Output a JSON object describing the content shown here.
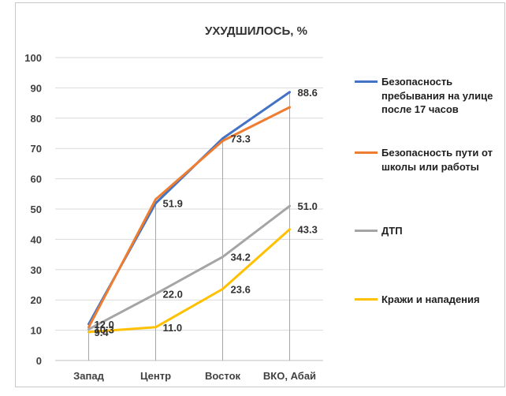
{
  "chart_data": {
    "type": "line",
    "title": "УХУДШИЛОСЬ, %",
    "categories": [
      "Запад",
      "Центр",
      "Восток",
      "ВКО, Абай"
    ],
    "ylim": [
      0,
      100
    ],
    "yticks": [
      0,
      10,
      20,
      30,
      40,
      50,
      60,
      70,
      80,
      90,
      100
    ],
    "grid": true,
    "legend_position": "right",
    "series": [
      {
        "name": "Безопасность пребывания на улице после 17 часов",
        "color": "#4472c4",
        "values": [
          12.0,
          51.9,
          73.3,
          88.6
        ]
      },
      {
        "name": "Безопасность пути от школы или работы",
        "color": "#ed7d31",
        "values": [
          11.0,
          53.2,
          72.5,
          83.6
        ]
      },
      {
        "name": "ДТП",
        "color": "#a5a5a5",
        "values": [
          10.3,
          22.0,
          34.2,
          51.0
        ]
      },
      {
        "name": "Кражи и нападения",
        "color": "#ffc000",
        "values": [
          9.4,
          11.0,
          23.6,
          43.3
        ]
      }
    ],
    "data_labels": [
      {
        "text": "12.0",
        "category": 0,
        "value": 12.0
      },
      {
        "text": "10.3",
        "category": 0,
        "value": 10.3
      },
      {
        "text": "9.4",
        "category": 0,
        "value": 9.4
      },
      {
        "text": "51.9",
        "category": 1,
        "value": 51.9
      },
      {
        "text": "22.0",
        "category": 1,
        "value": 22.0
      },
      {
        "text": "11.0",
        "category": 1,
        "value": 11.0
      },
      {
        "text": "73.3",
        "category": 2,
        "value": 73.3
      },
      {
        "text": "34.2",
        "category": 2,
        "value": 34.2
      },
      {
        "text": "23.6",
        "category": 2,
        "value": 23.6
      },
      {
        "text": "88.6",
        "category": 3,
        "value": 88.6
      },
      {
        "text": "51.0",
        "category": 3,
        "value": 51.0
      },
      {
        "text": "43.3",
        "category": 3,
        "value": 43.3
      }
    ]
  }
}
